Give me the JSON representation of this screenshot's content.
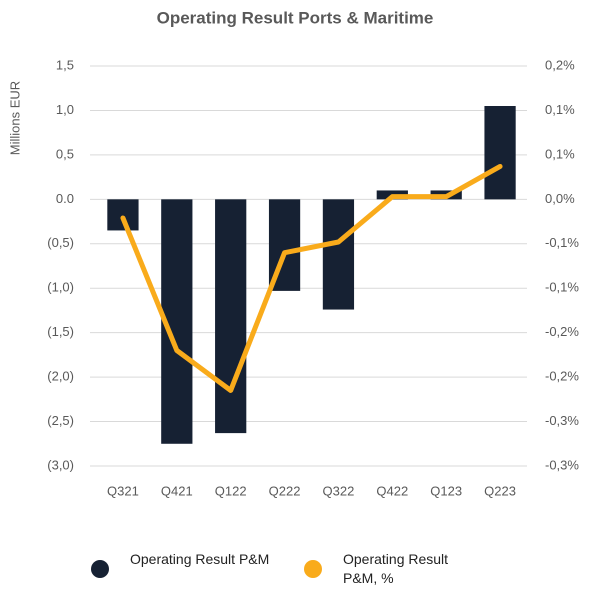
{
  "chart_data": {
    "type": "bar",
    "title": "Operating Result Ports & Maritime",
    "y_label": "Millions EUR",
    "categories": [
      "Q321",
      "Q421",
      "Q122",
      "Q222",
      "Q322",
      "Q422",
      "Q123",
      "Q223"
    ],
    "series": [
      {
        "name": "Operating Result P&M",
        "type": "bar",
        "color": "#162133",
        "values": [
          -0.35,
          -2.75,
          -2.63,
          -1.03,
          -1.24,
          0.1,
          0.1,
          1.05
        ]
      },
      {
        "name": "Operating Result P&M, %",
        "type": "line",
        "axis": "y2",
        "color": "#f9ab1b",
        "values": [
          -0.021,
          -0.17,
          -0.215,
          -0.06,
          -0.048,
          0.003,
          0.003,
          0.037
        ]
      }
    ],
    "ylim": [
      -3.0,
      1.5
    ],
    "yticks": [
      {
        "value": 1.5,
        "label": "1,5"
      },
      {
        "value": 1.0,
        "label": "1,0"
      },
      {
        "value": 0.5,
        "label": "0,5"
      },
      {
        "value": 0,
        "label": "0.0"
      },
      {
        "value": -0.5,
        "label": "(0,5)"
      },
      {
        "value": -1.0,
        "label": "(1,0)"
      },
      {
        "value": -1.5,
        "label": "(1,5)"
      },
      {
        "value": -2.0,
        "label": "(2,0)"
      },
      {
        "value": -2.5,
        "label": "(2,5)"
      },
      {
        "value": -3.0,
        "label": "(3,0)"
      }
    ],
    "y2lim": [
      -0.3,
      0.15
    ],
    "y2ticks": [
      {
        "value": 0.15,
        "label": "0,2%"
      },
      {
        "value": 0.1,
        "label": "0,1%"
      },
      {
        "value": 0.05,
        "label": "0,1%"
      },
      {
        "value": 0,
        "label": "0,0%"
      },
      {
        "value": -0.05,
        "label": "-0,1%"
      },
      {
        "value": -0.1,
        "label": "-0,1%"
      },
      {
        "value": -0.15,
        "label": "-0,2%"
      },
      {
        "value": -0.2,
        "label": "-0,2%"
      },
      {
        "value": -0.25,
        "label": "-0,3%"
      },
      {
        "value": -0.3,
        "label": "-0,3%"
      }
    ],
    "grid": true
  }
}
